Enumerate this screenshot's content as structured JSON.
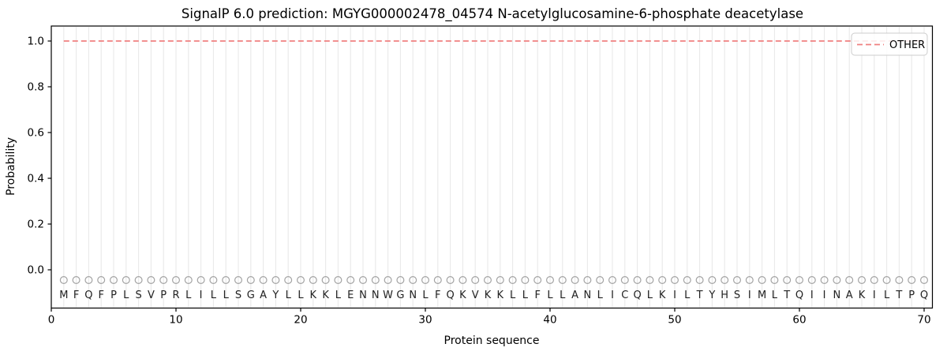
{
  "chart_data": {
    "type": "line",
    "title": "SignalP 6.0 prediction: MGYG000002478_04574 N-acetylglucosamine-6-phosphate deacetylase",
    "xlabel": "Protein sequence",
    "ylabel": "Probability",
    "x_ticks": [
      0,
      10,
      20,
      30,
      40,
      50,
      60,
      70
    ],
    "y_ticks": [
      "0.0",
      "0.2",
      "0.4",
      "0.6",
      "0.8",
      "1.0"
    ],
    "xlim": [
      0,
      70.7
    ],
    "ylim": [
      -0.17,
      1.07
    ],
    "grid": "vertical line at every residue position",
    "legend_position": "upper right",
    "legend": {
      "entries": [
        {
          "label": "OTHER",
          "color": "#f08080",
          "linestyle": "dashed"
        }
      ]
    },
    "series": [
      {
        "name": "OTHER",
        "color": "#f08080",
        "linestyle": "dashed",
        "x_description": "residue index 1..70",
        "values": [
          1,
          1,
          1,
          1,
          1,
          1,
          1,
          1,
          1,
          1,
          1,
          1,
          1,
          1,
          1,
          1,
          1,
          1,
          1,
          1,
          1,
          1,
          1,
          1,
          1,
          1,
          1,
          1,
          1,
          1,
          1,
          1,
          1,
          1,
          1,
          1,
          1,
          1,
          1,
          1,
          1,
          1,
          1,
          1,
          1,
          1,
          1,
          1,
          1,
          1,
          1,
          1,
          1,
          1,
          1,
          1,
          1,
          1,
          1,
          1,
          1,
          1,
          1,
          1,
          1,
          1,
          1,
          1,
          1,
          1
        ]
      }
    ],
    "sequence": "MFQFPLSVPRLILLSGAYLLKKLENNWGNLFQKVKKLLFLLANLICQLKILTYHSIMLTQIINAKILTPQ",
    "sequence_markers": {
      "symbol": "open-circle",
      "y_value": -0.05
    }
  },
  "colors": {
    "line": "#f08080",
    "grid": "#e9e9e9",
    "marker_stroke": "#a3a3a3",
    "spine": "#000000",
    "legend_border": "#cccccc",
    "text": "#000000"
  }
}
